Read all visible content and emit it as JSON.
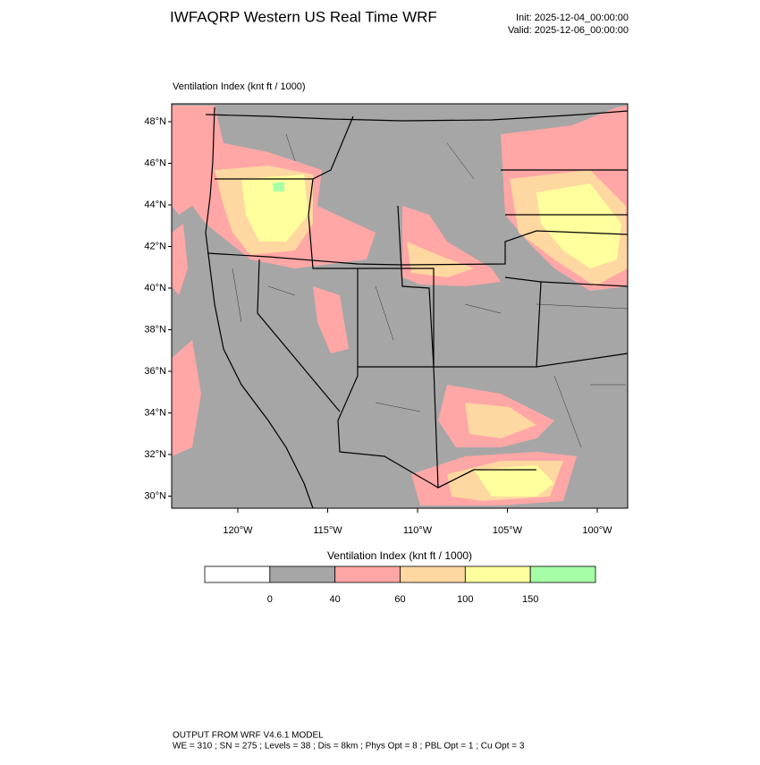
{
  "header": {
    "title": "IWFAQRP Western US Real Time WRF",
    "init": "Init: 2025-12-04_00:00:00",
    "valid": "Valid: 2025-12-06_00:00:00"
  },
  "map": {
    "label": "Ventilation Index   (knt ft / 1000)",
    "lat_labels": [
      "48°N",
      "46°N",
      "44°N",
      "42°N",
      "40°N",
      "38°N",
      "36°N",
      "34°N",
      "32°N",
      "30°N"
    ],
    "lon_labels": [
      "120°W",
      "115°W",
      "110°W",
      "105°W",
      "100°W"
    ]
  },
  "legend": {
    "title": "Ventilation Index   (knt ft / 1000)",
    "colors": [
      "#ffffff",
      "#a6a6a6",
      "#ffa6a6",
      "#ffd7a0",
      "#ffff9e",
      "#a6ffa6"
    ],
    "levels": [
      0,
      40,
      60,
      100,
      150
    ]
  },
  "footer": [
    "OUTPUT FROM WRF V4.6.1 MODEL",
    "WE = 310 ; SN = 275 ; Levels = 38 ; Dis = 8km ; Phys Opt = 8 ; PBL Opt = 1 ; Cu Opt = 3"
  ]
}
